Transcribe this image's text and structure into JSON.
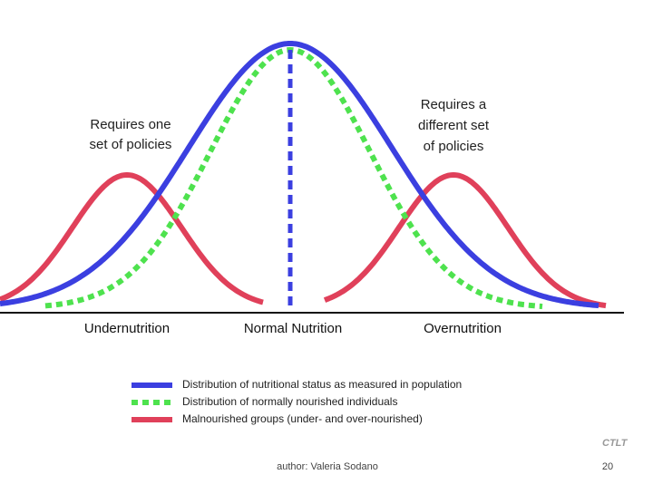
{
  "annotations": {
    "left": [
      "Requires one",
      "set of policies"
    ],
    "right": [
      "Requires a",
      "different set",
      "of policies"
    ]
  },
  "axis_labels": [
    "Undernutrition",
    "Normal Nutrition",
    "Overnutrition"
  ],
  "legend": [
    "Distribution of nutritional status as measured in population",
    "Distribution of normally nourished individuals",
    "Malnourished groups (under- and over-nourished)"
  ],
  "footer": {
    "logo": "CTLT",
    "author": "author: Valeria Sodano",
    "page": "20"
  }
}
